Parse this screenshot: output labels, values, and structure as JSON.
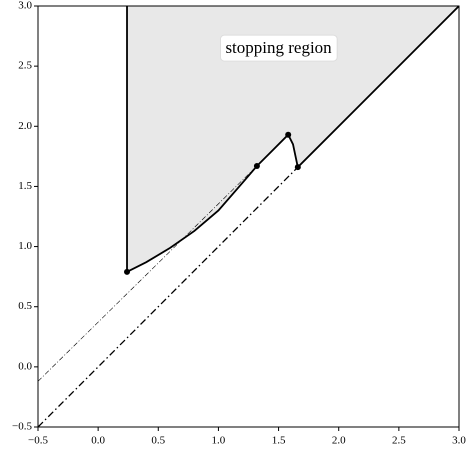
{
  "chart_data": {
    "type": "line",
    "annotation": {
      "text": "stopping region",
      "x": 1.5,
      "y": 2.65
    },
    "region_color": "#e8e8e8",
    "series": [
      {
        "color": "#000000",
        "style": "solid",
        "width": 1.8,
        "x": [
          0.24,
          0.24,
          0.4,
          0.6,
          0.8,
          1.0,
          1.2,
          1.32,
          1.45,
          1.58,
          1.62,
          1.66,
          3.0
        ],
        "y": [
          3.0,
          0.79,
          0.87,
          0.99,
          1.13,
          1.3,
          1.53,
          1.67,
          1.8,
          1.93,
          1.85,
          1.66,
          3.0
        ],
        "fill_region": true
      },
      {
        "color": "#000000",
        "style": "dashdot",
        "width": 1.3,
        "x": [
          -0.5,
          1.66
        ],
        "y": [
          -0.5,
          1.66
        ]
      },
      {
        "color": "#000000",
        "style": "dashdot-thin",
        "width": 0.6,
        "x": [
          -0.5,
          1.32
        ],
        "y": [
          -0.12,
          1.67
        ]
      },
      {
        "color": "#000000",
        "style": "points",
        "x": [
          0.24,
          1.32,
          1.58,
          1.66
        ],
        "y": [
          0.79,
          1.67,
          1.93,
          1.66
        ]
      }
    ],
    "xlim": [
      -0.5,
      3.0
    ],
    "ylim": [
      -0.5,
      3.0
    ],
    "xticks": [
      {
        "value": -0.5,
        "label": "−0.5"
      },
      {
        "value": 0,
        "label": "0.0"
      },
      0.5,
      {
        "value": 1,
        "label": "1.0"
      },
      1.5,
      {
        "value": 2,
        "label": "2.0"
      },
      2.5,
      {
        "value": 3,
        "label": "3.0"
      }
    ],
    "yticks": [
      {
        "value": -0.5,
        "label": "−0.5"
      },
      {
        "value": 0,
        "label": "0.0"
      },
      0.5,
      {
        "value": 1,
        "label": "1.0"
      },
      1.5,
      {
        "value": 2,
        "label": "2.0"
      },
      2.5,
      {
        "value": 3,
        "label": "3.0"
      }
    ]
  }
}
